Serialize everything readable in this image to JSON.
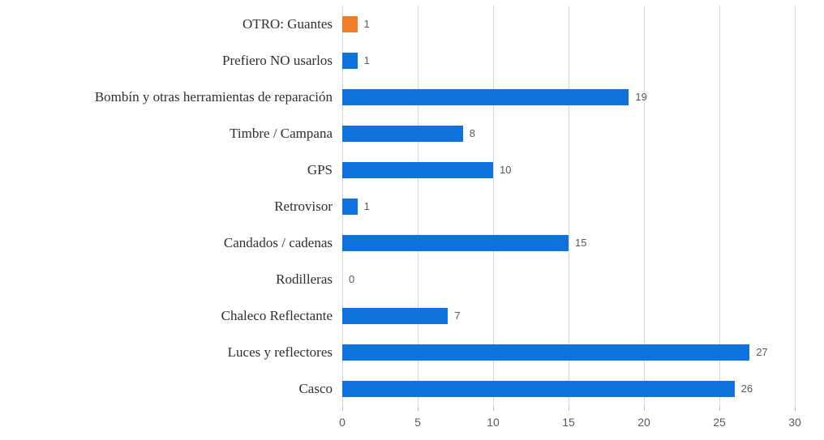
{
  "chart_data": {
    "type": "bar",
    "orientation": "horizontal",
    "title": "",
    "xlabel": "",
    "ylabel": "",
    "categories": [
      "OTRO: Guantes",
      "Prefiero NO usarlos",
      "Bombín y otras herramientas de reparación",
      "Timbre / Campana",
      "GPS",
      "Retrovisor",
      "Candados / cadenas",
      "Rodilleras",
      "Chaleco Reflectante",
      "Luces y reflectores",
      "Casco"
    ],
    "values": [
      1,
      1,
      19,
      8,
      10,
      1,
      15,
      0,
      7,
      27,
      26
    ],
    "value_labels": [
      "1",
      "1",
      "19",
      "8",
      "10",
      "1",
      "15",
      "0",
      "7",
      "27",
      "26"
    ],
    "bar_colors": [
      "#ee7e28",
      "#0d72dc",
      "#0d72dc",
      "#0d72dc",
      "#0d72dc",
      "#0d72dc",
      "#0d72dc",
      "#0d72dc",
      "#0d72dc",
      "#0d72dc",
      "#0d72dc"
    ],
    "xlim": [
      0,
      30
    ],
    "xticks": [
      0,
      5,
      10,
      15,
      20,
      25,
      30
    ],
    "xtick_labels": [
      "0",
      "5",
      "10",
      "15",
      "20",
      "25",
      "30"
    ],
    "grid": "vertical",
    "legend": "none"
  },
  "colors": {
    "bar_blue": "#0d72dc",
    "bar_orange": "#ee7e28",
    "gridline": "#d9d9d9",
    "tick_mark": "#bfbfbf",
    "axis_text": "#595959",
    "category_text": "#2f2f2f",
    "background": "#ffffff"
  }
}
